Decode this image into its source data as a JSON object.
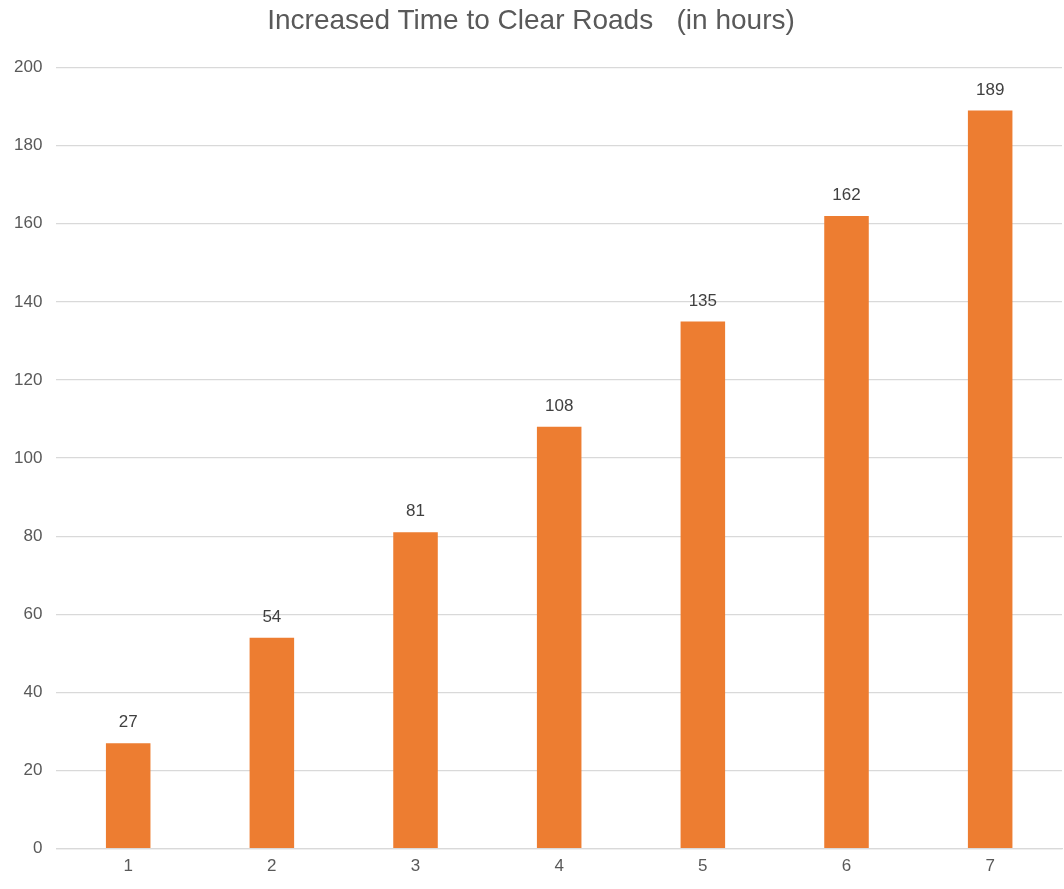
{
  "chart_data": {
    "type": "bar",
    "title": "Increased Time to Clear Roads   (in hours)",
    "categories": [
      "1",
      "2",
      "3",
      "4",
      "5",
      "6",
      "7"
    ],
    "values": [
      27,
      54,
      81,
      108,
      135,
      162,
      189
    ],
    "color": "#ed7d31",
    "ylim": [
      0,
      200
    ],
    "yticks": [
      0,
      20,
      40,
      60,
      80,
      100,
      120,
      140,
      160,
      180,
      200
    ],
    "grid": "y",
    "data_labels": true,
    "legend": false
  }
}
